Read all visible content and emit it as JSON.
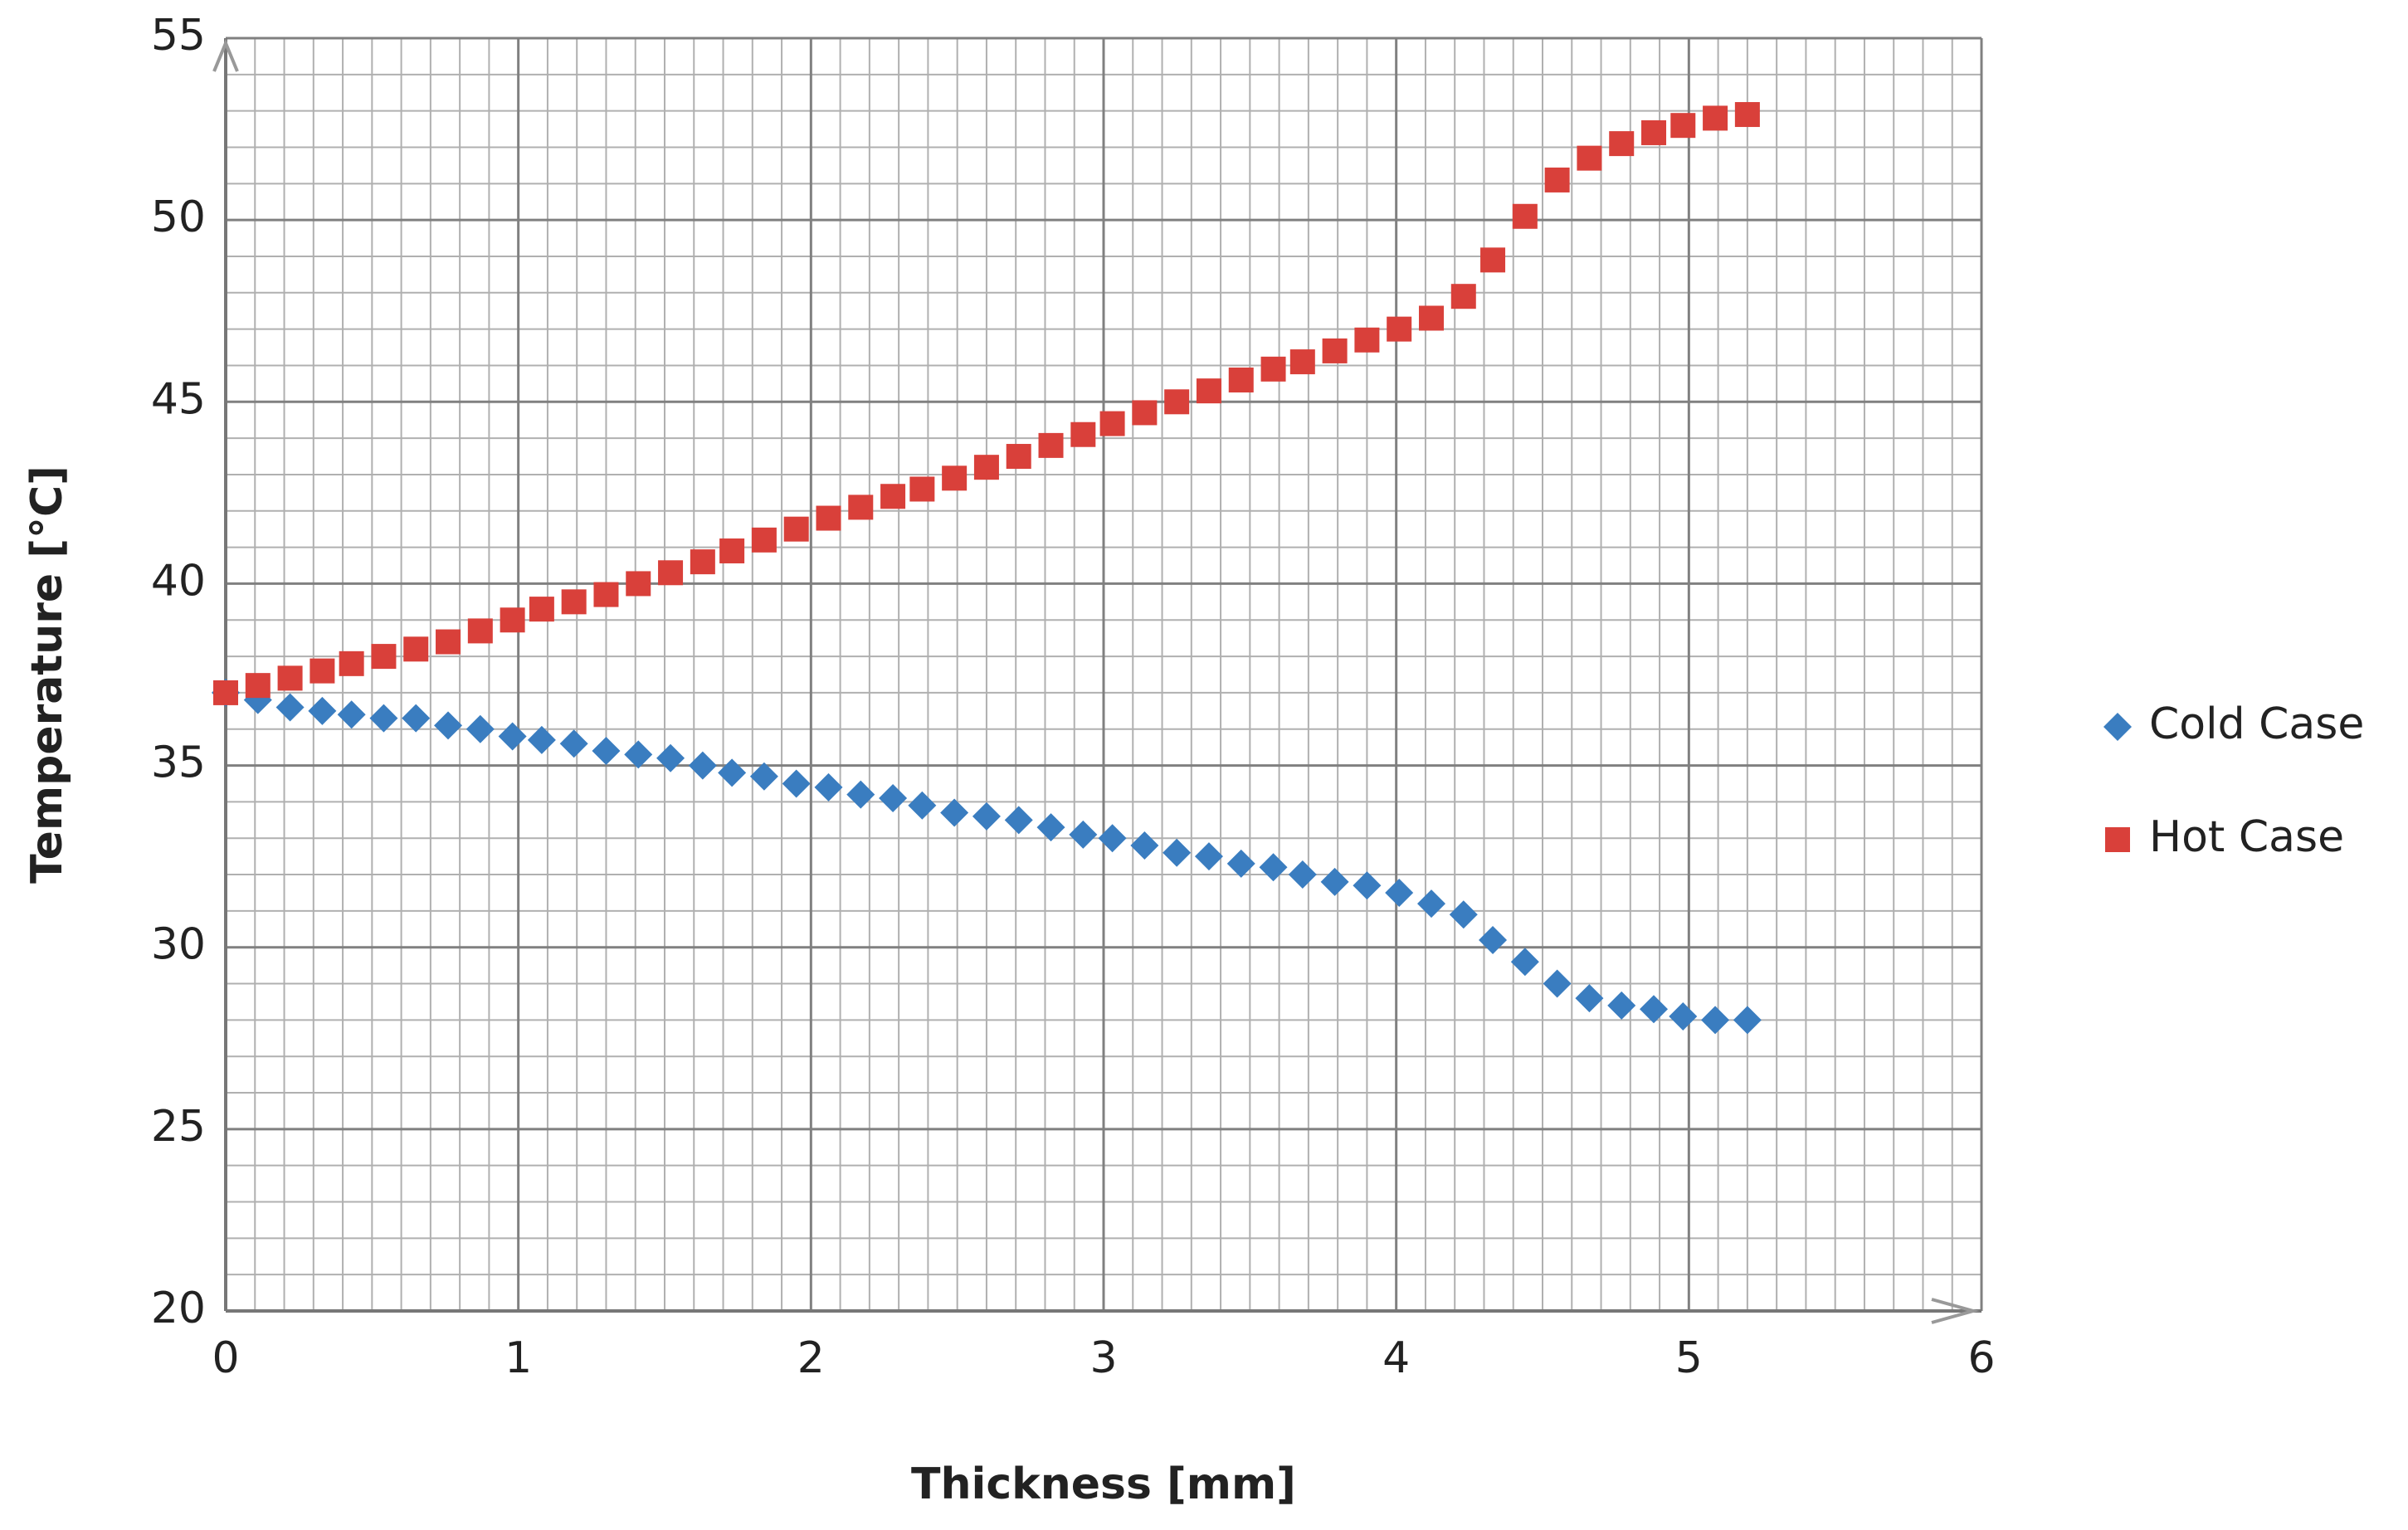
{
  "chart_data": {
    "type": "scatter",
    "xlabel": "Thickness  [mm]",
    "ylabel": "Temperature [°C]",
    "x": [
      0,
      0.11,
      0.22,
      0.33,
      0.43,
      0.54,
      0.65,
      0.76,
      0.87,
      0.98,
      1.08,
      1.19,
      1.3,
      1.41,
      1.52,
      1.63,
      1.73,
      1.84,
      1.95,
      2.06,
      2.17,
      2.28,
      2.38,
      2.49,
      2.6,
      2.71,
      2.82,
      2.93,
      3.03,
      3.14,
      3.25,
      3.36,
      3.47,
      3.58,
      3.68,
      3.79,
      3.9,
      4.01,
      4.12,
      4.23,
      4.33,
      4.44,
      4.55,
      4.66,
      4.77,
      4.88,
      4.98,
      5.09,
      5.2
    ],
    "series": [
      {
        "name": "Cold Case",
        "color": "#3a7dc0",
        "marker": "diamond",
        "values": [
          37.0,
          36.8,
          36.6,
          36.5,
          36.4,
          36.3,
          36.3,
          36.1,
          36.0,
          35.8,
          35.7,
          35.6,
          35.4,
          35.3,
          35.2,
          35.0,
          34.8,
          34.7,
          34.5,
          34.4,
          34.2,
          34.1,
          33.9,
          33.7,
          33.6,
          33.5,
          33.3,
          33.1,
          33.0,
          32.8,
          32.6,
          32.5,
          32.3,
          32.2,
          32.0,
          31.8,
          31.7,
          31.5,
          31.2,
          30.9,
          30.2,
          29.6,
          29.0,
          28.6,
          28.4,
          28.3,
          28.1,
          28.0,
          28.0
        ]
      },
      {
        "name": "Hot Case",
        "color": "#d9403a",
        "marker": "square",
        "values": [
          37.0,
          37.2,
          37.4,
          37.6,
          37.8,
          38.0,
          38.2,
          38.4,
          38.7,
          39.0,
          39.3,
          39.5,
          39.7,
          40.0,
          40.3,
          40.6,
          40.9,
          41.2,
          41.5,
          41.8,
          42.1,
          42.4,
          42.6,
          42.9,
          43.2,
          43.5,
          43.8,
          44.1,
          44.4,
          44.7,
          45.0,
          45.3,
          45.6,
          45.9,
          46.1,
          46.4,
          46.7,
          47.0,
          47.3,
          47.9,
          48.9,
          50.1,
          51.1,
          51.7,
          52.1,
          52.4,
          52.6,
          52.8,
          52.9
        ]
      }
    ],
    "xlim": [
      0,
      6
    ],
    "xticks": [
      0,
      1,
      2,
      3,
      4,
      5,
      6
    ],
    "ylim": [
      20,
      55
    ],
    "yticks": [
      20,
      25,
      30,
      35,
      40,
      45,
      50,
      55
    ],
    "grid": true,
    "minor_grid": true,
    "legend": "right"
  }
}
